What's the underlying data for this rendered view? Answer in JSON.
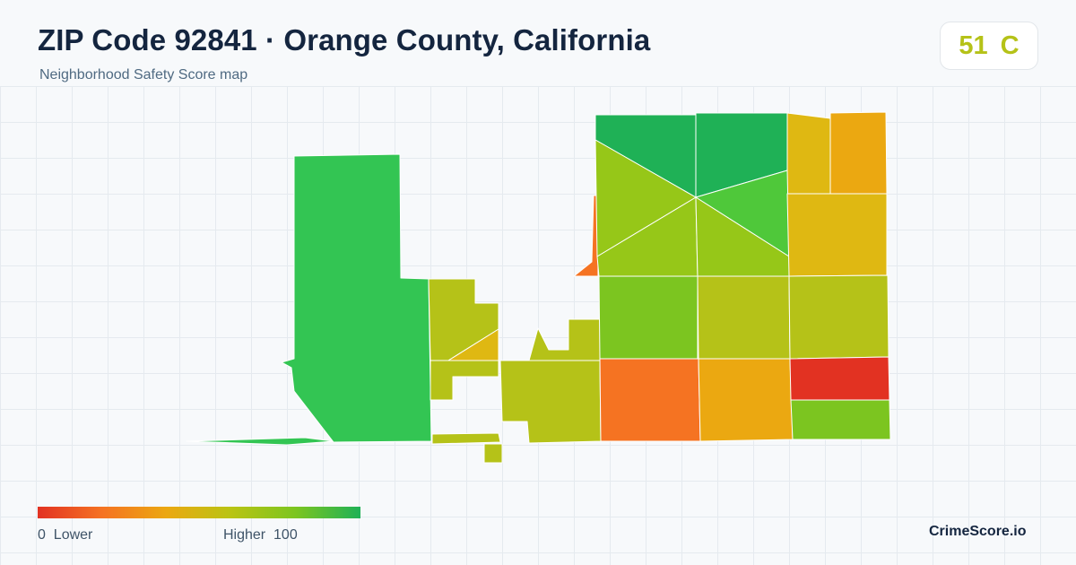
{
  "header": {
    "title": "ZIP Code 92841 · Orange County, California",
    "subtitle": "Neighborhood Safety Score map"
  },
  "score": {
    "value": "51",
    "grade": "C",
    "color": "#b5c218"
  },
  "legend": {
    "low_value": "0",
    "low_label": "Lower",
    "high_label": "Higher",
    "high_value": "100",
    "gradient_colors": [
      "#e23222",
      "#f57322",
      "#eba811",
      "#b9c413",
      "#7cc520",
      "#1fb156"
    ]
  },
  "brand": "CrimeScore.io",
  "map": {
    "region_colors": {
      "west-tract": "#33c553",
      "dark-green": "#1fb156",
      "red": "#e23222",
      "orange": "#f57322",
      "amber": "#eba811",
      "gold": "#dfb812",
      "olive": "#b5c218",
      "yellow-green": "#96c718",
      "lime": "#7cc520",
      "green": "#4fc83a"
    }
  }
}
